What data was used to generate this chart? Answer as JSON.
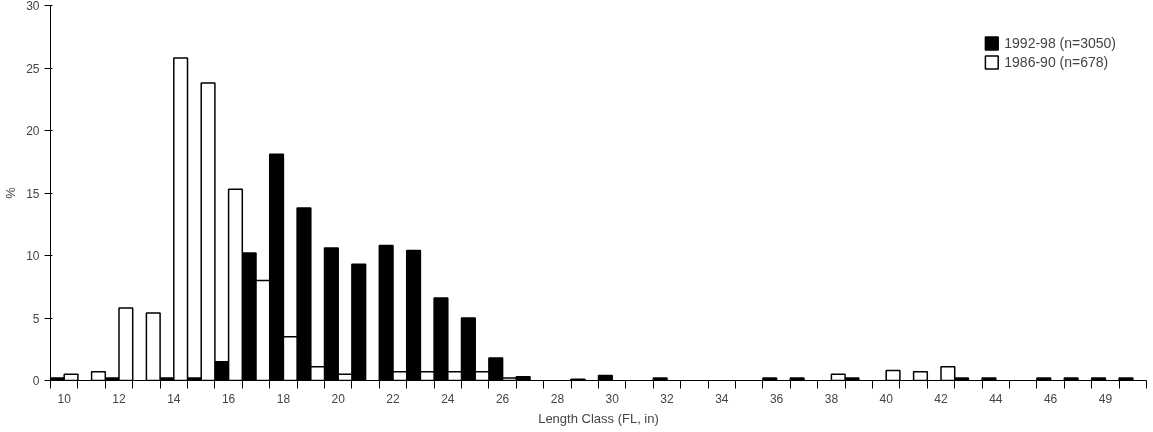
{
  "chart_data": {
    "type": "bar",
    "xlabel": "Length Class (FL, in)",
    "ylabel": "%",
    "categories": [
      "10",
      null,
      "12",
      null,
      "14",
      null,
      "16",
      null,
      "18",
      null,
      "20",
      null,
      "22",
      null,
      "24",
      null,
      "26",
      null,
      "28",
      null,
      "30",
      null,
      "32",
      null,
      "34",
      null,
      "36",
      null,
      "38",
      null,
      "40",
      null,
      "42",
      null,
      "44",
      null,
      "46",
      null,
      "49",
      null
    ],
    "series": [
      {
        "name": "1992-98 (n=3050)",
        "color": "#000000",
        "values": [
          0.2,
          0,
          0.2,
          0,
          0.2,
          0.2,
          1.5,
          10.2,
          18.1,
          13.8,
          10.6,
          9.3,
          10.8,
          10.4,
          6.6,
          5.0,
          1.8,
          0.3,
          null,
          0.1,
          0.4,
          0,
          0.2,
          0,
          0,
          0,
          0.2,
          0.2,
          0,
          0.2,
          0,
          0,
          0,
          0.2,
          0.2,
          0,
          0.2,
          0.2,
          0.2,
          0.2
        ]
      },
      {
        "name": "1986-90 (n=678)",
        "color": "#ffffff",
        "values": [
          0.5,
          0.7,
          5.8,
          5.4,
          25.8,
          23.8,
          15.3,
          8.0,
          3.5,
          1.1,
          0.5,
          null,
          0.7,
          0.7,
          0.7,
          0.7,
          0.2,
          null,
          0,
          0,
          0,
          0,
          0,
          0,
          0,
          0,
          0,
          0,
          0.5,
          0,
          0.8,
          0.7,
          1.1,
          0,
          0,
          0,
          0,
          0,
          0,
          0
        ]
      }
    ],
    "ylim": [
      0,
      30
    ],
    "yticks": [
      0,
      5,
      10,
      15,
      20,
      25,
      30
    ],
    "grid": false,
    "legend": "top right"
  }
}
